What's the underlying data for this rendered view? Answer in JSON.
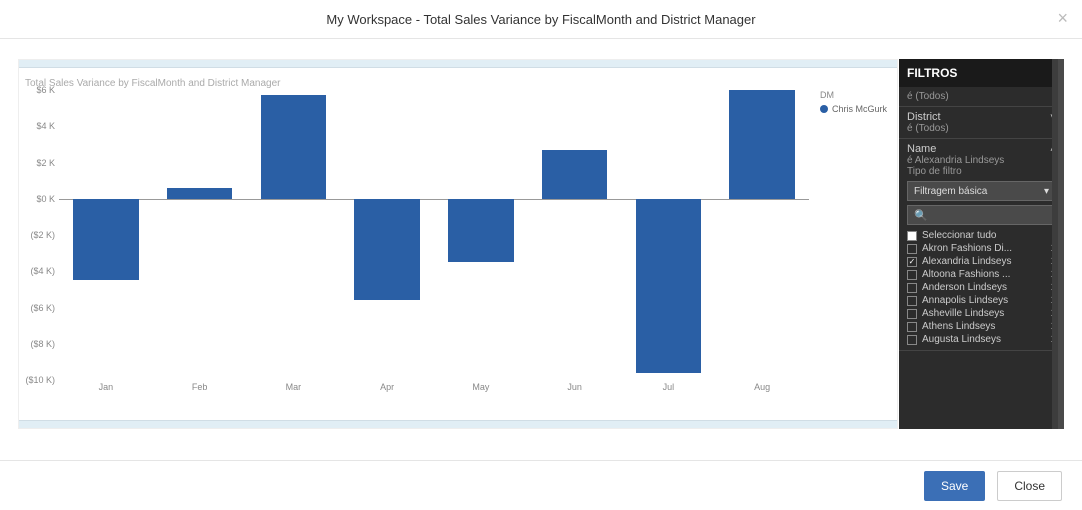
{
  "header": {
    "title": "My Workspace - Total Sales Variance by FiscalMonth and District Manager"
  },
  "chart": {
    "type": "bar",
    "title": "Total Sales Variance by FiscalMonth and District Manager",
    "categories": [
      "Jan",
      "Feb",
      "Mar",
      "Apr",
      "May",
      "Jun",
      "Jul",
      "Aug"
    ],
    "values": [
      -4500,
      600,
      5700,
      -5600,
      -3500,
      2700,
      -9600,
      6000
    ],
    "bar_color": "#2a5fa5",
    "ylim": [
      -10000,
      6000
    ],
    "ytick_step": 2000,
    "ytick_labels": [
      "$6 K",
      "$4 K",
      "$2 K",
      "$0 K",
      "($2 K)",
      "($4 K)",
      "($6 K)",
      "($8 K)",
      "($10 K)"
    ],
    "ytick_values": [
      6000,
      4000,
      2000,
      0,
      -2000,
      -4000,
      -6000,
      -8000,
      -10000
    ],
    "bar_width": 0.7,
    "background_color": "#ffffff",
    "axis_color": "#999999",
    "label_color": "#888888",
    "label_fontsize": 9,
    "title_fontsize": 10,
    "legend": {
      "title": "DM",
      "items": [
        {
          "label": "Chris McGurk",
          "color": "#2a5fa5"
        }
      ]
    }
  },
  "filters": {
    "panel_title": "FILTROS",
    "sections": [
      {
        "sub": "é (Todos)"
      },
      {
        "label": "District",
        "sub": "é (Todos)",
        "chev": "down"
      },
      {
        "label": "Name",
        "sub": "é Alexandria Lindseys",
        "sub2": "Tipo de filtro",
        "chev": "up",
        "dropdown": "Filtragem básica",
        "search_placeholder": "",
        "items": [
          {
            "label": "Seleccionar tudo",
            "checked": false,
            "select_all": true,
            "count": ""
          },
          {
            "label": "Akron Fashions Di...",
            "checked": false,
            "count": "1"
          },
          {
            "label": "Alexandria Lindseys",
            "checked": true,
            "count": "1"
          },
          {
            "label": "Altoona Fashions ...",
            "checked": false,
            "count": "1"
          },
          {
            "label": "Anderson Lindseys",
            "checked": false,
            "count": "1"
          },
          {
            "label": "Annapolis Lindseys",
            "checked": false,
            "count": "1"
          },
          {
            "label": "Asheville Lindseys",
            "checked": false,
            "count": "1"
          },
          {
            "label": "Athens Lindseys",
            "checked": false,
            "count": "1"
          },
          {
            "label": "Augusta Lindseys",
            "checked": false,
            "count": "1"
          }
        ]
      }
    ]
  },
  "footer": {
    "save": "Save",
    "close": "Close"
  }
}
